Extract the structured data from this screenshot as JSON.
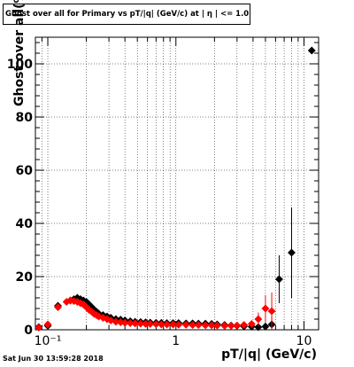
{
  "chart_data": {
    "type": "scatter",
    "title": "Ghost over all for Primary vs pT/|q| (GeV/c) at | η | <= 1.0",
    "xlabel": "pT/|q| (GeV/c)",
    "ylabel": "Ghost over all(%)",
    "xscale": "log",
    "xlim": [
      0.08,
      13
    ],
    "ylim": [
      0,
      110
    ],
    "grid": true,
    "x_ticks": [
      "10⁻¹",
      "1",
      "10"
    ],
    "y_ticks": [
      "0",
      "20",
      "40",
      "60",
      "80",
      "100"
    ],
    "series": [
      {
        "color": "#000000",
        "marker": "diamond",
        "x": [
          0.085,
          0.1,
          0.12,
          0.15,
          0.16,
          0.17,
          0.18,
          0.19,
          0.2,
          0.21,
          0.22,
          0.23,
          0.24,
          0.25,
          0.27,
          0.29,
          0.31,
          0.34,
          0.37,
          0.4,
          0.44,
          0.48,
          0.53,
          0.58,
          0.63,
          0.7,
          0.77,
          0.85,
          0.95,
          1.05,
          1.2,
          1.35,
          1.5,
          1.7,
          1.9,
          2.1,
          2.4,
          2.7,
          3.0,
          3.4,
          3.9,
          4.4,
          5.0,
          5.6,
          6.4,
          8.0,
          11.5
        ],
        "y": [
          1.0,
          1.5,
          9.0,
          11.0,
          11.5,
          12.0,
          11.5,
          11.0,
          10.5,
          9.5,
          8.5,
          7.5,
          6.8,
          6.0,
          5.5,
          5.0,
          4.5,
          4.0,
          3.8,
          3.5,
          3.2,
          3.0,
          2.9,
          2.8,
          2.7,
          2.6,
          2.6,
          2.5,
          2.5,
          2.5,
          2.4,
          2.4,
          2.3,
          2.3,
          2.2,
          2.0,
          1.8,
          1.6,
          1.5,
          1.3,
          1.2,
          1.0,
          1.2,
          2.0,
          19.0,
          29.0,
          105.0
        ],
        "yerr": [
          0.3,
          0.3,
          0.5,
          0.5,
          0.5,
          0.5,
          0.5,
          0.5,
          0.5,
          0.4,
          0.4,
          0.4,
          0.3,
          0.3,
          0.3,
          0.3,
          0.3,
          0.2,
          0.2,
          0.2,
          0.2,
          0.2,
          0.2,
          0.2,
          0.2,
          0.2,
          0.2,
          0.2,
          0.2,
          0.2,
          0.2,
          0.2,
          0.3,
          0.3,
          0.3,
          0.3,
          0.3,
          0.4,
          0.4,
          0.5,
          0.6,
          0.8,
          1.5,
          3.0,
          9.0,
          17.0,
          0.0
        ]
      },
      {
        "color": "#ff0000",
        "marker": "diamond",
        "x": [
          0.085,
          0.1,
          0.12,
          0.14,
          0.15,
          0.16,
          0.17,
          0.18,
          0.19,
          0.2,
          0.21,
          0.22,
          0.23,
          0.24,
          0.25,
          0.27,
          0.29,
          0.31,
          0.34,
          0.37,
          0.4,
          0.44,
          0.48,
          0.53,
          0.58,
          0.63,
          0.7,
          0.77,
          0.85,
          0.95,
          1.05,
          1.2,
          1.35,
          1.5,
          1.7,
          1.9,
          2.1,
          2.4,
          2.7,
          3.0,
          3.4,
          3.9,
          4.4,
          5.0,
          5.6
        ],
        "y": [
          0.8,
          2.0,
          8.5,
          10.5,
          11.0,
          10.8,
          10.5,
          10.0,
          9.5,
          8.5,
          7.5,
          6.8,
          6.0,
          5.5,
          5.0,
          4.5,
          4.0,
          3.5,
          3.0,
          2.8,
          2.6,
          2.5,
          2.4,
          2.3,
          2.2,
          2.2,
          2.1,
          2.0,
          2.0,
          2.0,
          1.9,
          1.9,
          1.8,
          1.8,
          1.7,
          1.7,
          1.6,
          1.5,
          1.5,
          1.6,
          1.8,
          2.2,
          4.0,
          8.0,
          7.0
        ],
        "yerr": [
          0.3,
          0.4,
          0.6,
          0.6,
          0.6,
          0.5,
          0.5,
          0.5,
          0.5,
          0.5,
          0.4,
          0.4,
          0.4,
          0.4,
          0.3,
          0.3,
          0.3,
          0.3,
          0.2,
          0.2,
          0.2,
          0.2,
          0.2,
          0.2,
          0.2,
          0.2,
          0.2,
          0.2,
          0.2,
          0.2,
          0.2,
          0.2,
          0.2,
          0.3,
          0.3,
          0.3,
          0.3,
          0.3,
          0.4,
          0.4,
          0.6,
          0.8,
          2.5,
          5.0,
          7.0
        ]
      }
    ]
  },
  "footer": {
    "timestamp": "Sat Jun 30 13:59:28 2018"
  }
}
